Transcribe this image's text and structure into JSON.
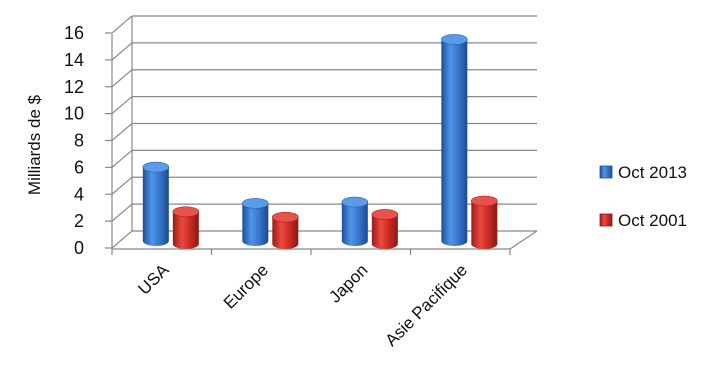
{
  "chart_data": {
    "type": "bar",
    "ylabel": "Milliards de $",
    "ylim": [
      0,
      16
    ],
    "yticks": [
      "0",
      "2",
      "4",
      "6",
      "8",
      "10",
      "12",
      "14",
      "16"
    ],
    "categories": [
      "USA",
      "Europe",
      "Japon",
      "Asie Pacifique"
    ],
    "series": [
      {
        "name": "Oct 2013",
        "values": [
          5.5,
          2.8,
          2.9,
          15.0
        ],
        "color": "#3d7fd1"
      },
      {
        "name": "Oct 2001",
        "values": [
          2.4,
          2.0,
          2.2,
          3.2
        ],
        "color": "#d9302b"
      }
    ],
    "legend": "right",
    "grid": true,
    "style": "3d-cylinder"
  }
}
